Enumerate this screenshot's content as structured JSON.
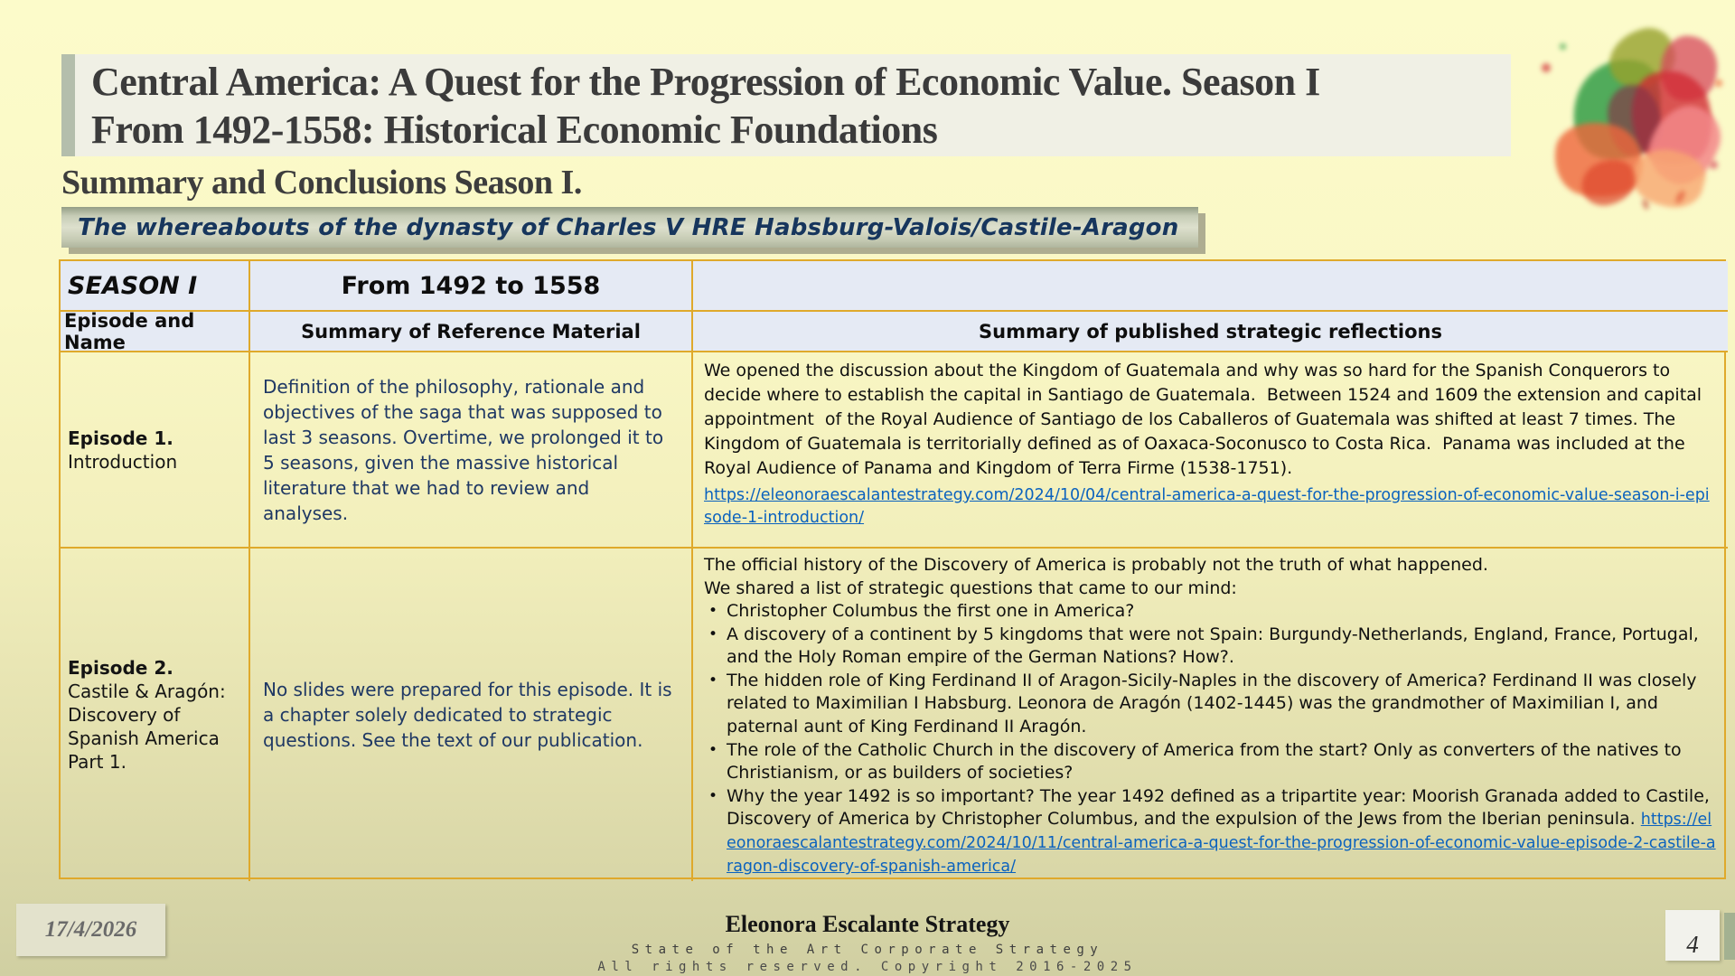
{
  "slide": {
    "title_line1": "Central America:  A Quest for the Progression of Economic Value. Season I",
    "title_line2": "From 1492-1558: Historical Economic Foundations",
    "subtitle": "Summary and Conclusions Season I.",
    "banner": "The whereabouts of the dynasty of Charles V HRE Habsburg-Valois/Castile-Aragon"
  },
  "table": {
    "season_label": "SEASON I",
    "season_range": "From 1492 to 1558",
    "headers": {
      "col1": "Episode and Name",
      "col2": "Summary of Reference Material",
      "col3": "Summary of published strategic reflections"
    },
    "episode1": {
      "name_bold": "Episode 1.",
      "name_rest": "Introduction",
      "reference": "Definition of the philosophy, rationale and objectives of the saga that was supposed to last 3 seasons. Overtime, we prolonged it to 5 seasons, given the massive historical literature that we had to review and analyses.",
      "reflection": "We opened the discussion about the Kingdom of Guatemala and why was so hard for the Spanish Conquerors to decide where to establish the capital in Santiago de Guatemala.  Between 1524 and 1609 the extension and capital appointment  of the Royal Audience of Santiago de los Caballeros of Guatemala was shifted at least 7 times. The Kingdom of Guatemala is territorially defined as of Oaxaca-Soconusco to Costa Rica.  Panama was included at the Royal Audience of Panama and Kingdom of Terra Firme (1538-1751).",
      "link": "https://eleonoraescalantestrategy.com/2024/10/04/central-america-a-quest-for-the-progression-of-economic-value-season-i-episode-1-introduction/"
    },
    "episode2": {
      "name_bold": "Episode 2.",
      "name_rest": "Castile & Aragón: Discovery of Spanish America Part 1.",
      "reference": "No slides were prepared for this episode. It is a chapter solely dedicated to strategic questions. See the text of our publication.",
      "reflection_line1": "The official history of the Discovery of America is probably not the truth of what happened.",
      "reflection_line2": "We shared a list of strategic questions that came to our mind:",
      "bullets": [
        "Christopher Columbus the first one in America?",
        "A discovery of a continent by 5 kingdoms that were not Spain: Burgundy-Netherlands, England, France, Portugal, and the Holy Roman empire of the German Nations? How?.",
        "The hidden role of King Ferdinand II of Aragon-Sicily-Naples in the discovery of America? Ferdinand II was closely related to Maximilian I Habsburg. Leonora de Aragón (1402-1445) was the grandmother of Maximilian I, and paternal aunt of King Ferdinand II Aragón.",
        "The role of the Catholic Church in the discovery of America from the start? Only as converters of the natives to Christianism, or as builders of societies?",
        "Why the year 1492 is so important? The year 1492 defined as a tripartite year: Moorish Granada added to Castile, Discovery of America by Christopher Columbus, and the expulsion of the Jews from the Iberian peninsula.  "
      ],
      "link": "https://eleonoraescalantestrategy.com/2024/10/11/central-america-a-quest-for-the-progression-of-economic-value-episode-2-castile-aragon-discovery-of-spanish-america/"
    }
  },
  "footer": {
    "date": "17/4/2026",
    "brand": "Eleonora Escalante Strategy",
    "tagline": "State of the Art Corporate Strategy",
    "copyright": "All rights reserved. Copyright 2016-2025",
    "page": "4"
  },
  "colors": {
    "table_border": "#DFA92B",
    "header_fill": "#E5EAF4",
    "link_blue": "#0B62BE",
    "navy_text": "#1F3864",
    "banner_text": "#17365D"
  },
  "icons": {
    "watercolor_splash": "decorative watercolor leaf splash, red/green/orange"
  }
}
